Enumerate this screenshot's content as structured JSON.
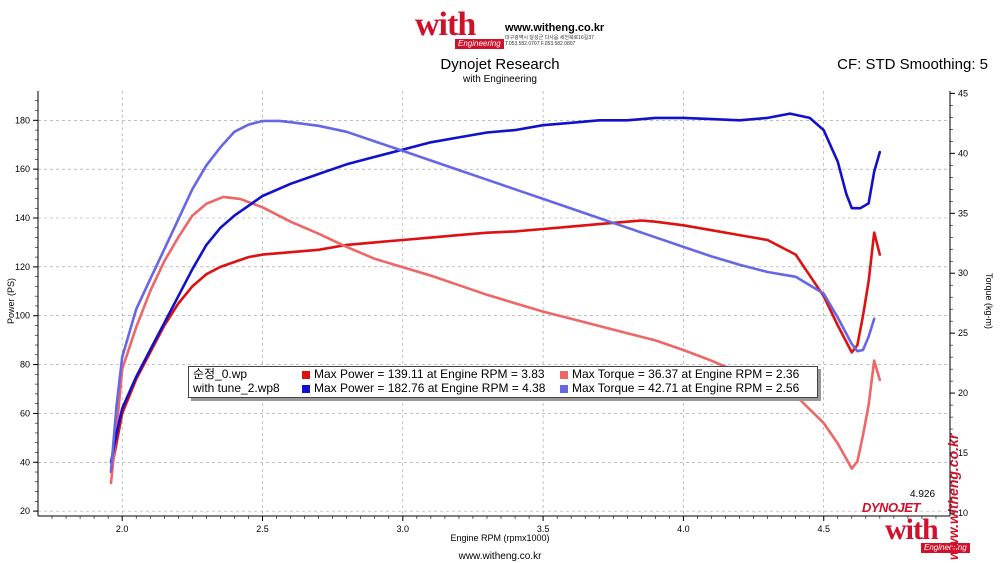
{
  "header": {
    "logo_word": "with",
    "logo_sub": "Engineering",
    "website": "www.witheng.co.kr",
    "contact_line": "대구광역시 달성군 다사읍 세천북로16길37  T.053.582.0707 F.053.582.0807"
  },
  "settings_text": "CF: STD Smoothing: 5",
  "footer_url": "www.witheng.co.kr",
  "side_url": "www.witheng.co.kr",
  "dyno_logo": "DYNOJET",
  "cursor_value": "4.926",
  "colors": {
    "run1_power": "#dd1111",
    "run1_torque": "#ee6666",
    "run2_power": "#1111cc",
    "run2_torque": "#6666e6",
    "grid": "#999999",
    "brand": "#d0112b"
  },
  "chart_data": {
    "type": "line",
    "title": "Dynojet Research",
    "subtitle": "with Engineering",
    "xlabel": "Engine RPM (rpmx1000)",
    "ylabel_left": "Power (PS)",
    "ylabel_right": "Torque (kg-m)",
    "xlim": [
      1.7,
      4.95
    ],
    "ylim_left": [
      18,
      192
    ],
    "ylim_right": [
      9.75,
      45.2
    ],
    "x_ticks": [
      "2.0",
      "2.5",
      "3.0",
      "3.5",
      "4.0",
      "4.5"
    ],
    "y_left_ticks": [
      "20",
      "40",
      "60",
      "80",
      "100",
      "120",
      "140",
      "160",
      "180"
    ],
    "y_right_ticks": [
      "10",
      "15",
      "20",
      "25",
      "30",
      "35",
      "40",
      "45"
    ],
    "grid": true,
    "legend_position": "center-bottom",
    "legend": [
      {
        "file": "순정_0.wp",
        "entries": [
          "Max Power = 139.11 at Engine RPM = 3.83",
          "Max Torque = 36.37 at Engine RPM = 2.36"
        ]
      },
      {
        "file": "with tune_2.wp8",
        "entries": [
          "Max Power = 182.76 at Engine RPM = 4.38",
          "Max Torque = 42.71 at Engine RPM = 2.56"
        ]
      }
    ],
    "series": [
      {
        "axis": "left",
        "color": "#dd1111",
        "x": [
          1.96,
          1.98,
          2.0,
          2.05,
          2.1,
          2.15,
          2.2,
          2.25,
          2.3,
          2.35,
          2.4,
          2.45,
          2.5,
          2.6,
          2.7,
          2.8,
          2.9,
          3.0,
          3.1,
          3.2,
          3.3,
          3.4,
          3.5,
          3.6,
          3.7,
          3.8,
          3.85,
          3.9,
          4.0,
          4.1,
          4.2,
          4.3,
          4.4,
          4.5,
          4.55,
          4.6,
          4.62,
          4.64,
          4.66,
          4.68,
          4.7
        ],
        "y": [
          36,
          48,
          60,
          74,
          85,
          96,
          105,
          112,
          117,
          120,
          122,
          124,
          125,
          126,
          127,
          129,
          130,
          131,
          132,
          133,
          134,
          134.5,
          135.5,
          136.5,
          137.5,
          138.5,
          139,
          138.5,
          137,
          135,
          133,
          131,
          125,
          108,
          96,
          85,
          88,
          100,
          114,
          134,
          125
        ]
      },
      {
        "axis": "right",
        "color": "#ee6666",
        "x": [
          1.96,
          1.98,
          2.0,
          2.05,
          2.1,
          2.15,
          2.2,
          2.25,
          2.3,
          2.36,
          2.42,
          2.5,
          2.6,
          2.7,
          2.8,
          2.9,
          3.0,
          3.1,
          3.2,
          3.3,
          3.4,
          3.5,
          3.6,
          3.7,
          3.8,
          3.9,
          4.0,
          4.1,
          4.2,
          4.3,
          4.4,
          4.5,
          4.55,
          4.6,
          4.62,
          4.64,
          4.66,
          4.68,
          4.7
        ],
        "y": [
          12.5,
          17,
          22,
          25.5,
          28.5,
          31,
          33,
          34.8,
          35.8,
          36.37,
          36.2,
          35.5,
          34.3,
          33.3,
          32.2,
          31.2,
          30.5,
          29.8,
          29,
          28.2,
          27.5,
          26.8,
          26.2,
          25.6,
          25,
          24.4,
          23.6,
          22.7,
          21.7,
          20.9,
          19.8,
          17.5,
          15.8,
          13.7,
          14.3,
          16.5,
          19,
          22.7,
          21.1
        ]
      },
      {
        "axis": "left",
        "color": "#1111cc",
        "x": [
          1.96,
          1.98,
          2.0,
          2.05,
          2.1,
          2.15,
          2.2,
          2.25,
          2.3,
          2.35,
          2.4,
          2.45,
          2.5,
          2.6,
          2.7,
          2.8,
          2.9,
          3.0,
          3.1,
          3.2,
          3.3,
          3.4,
          3.5,
          3.6,
          3.7,
          3.8,
          3.9,
          4.0,
          4.1,
          4.2,
          4.3,
          4.38,
          4.45,
          4.5,
          4.55,
          4.58,
          4.6,
          4.63,
          4.66,
          4.68,
          4.7
        ],
        "y": [
          40,
          52,
          62,
          75,
          86,
          97,
          108,
          119,
          129,
          136,
          141,
          145,
          149,
          154,
          158,
          162,
          165,
          168,
          171,
          173,
          175,
          176,
          178,
          179,
          180,
          180,
          181,
          181,
          180.5,
          180,
          181,
          182.76,
          181,
          176,
          163,
          150,
          144,
          144,
          146,
          159,
          167
        ]
      },
      {
        "axis": "right",
        "color": "#6666e6",
        "x": [
          1.96,
          1.98,
          2.0,
          2.05,
          2.1,
          2.15,
          2.2,
          2.25,
          2.3,
          2.35,
          2.4,
          2.45,
          2.5,
          2.56,
          2.6,
          2.7,
          2.8,
          2.9,
          3.0,
          3.1,
          3.2,
          3.3,
          3.4,
          3.5,
          3.6,
          3.7,
          3.8,
          3.9,
          4.0,
          4.1,
          4.2,
          4.3,
          4.4,
          4.5,
          4.55,
          4.6,
          4.62,
          4.64,
          4.66,
          4.68
        ],
        "y": [
          13.5,
          19,
          23,
          27,
          29.5,
          32,
          34.5,
          37,
          39,
          40.5,
          41.8,
          42.4,
          42.7,
          42.71,
          42.6,
          42.3,
          41.8,
          41,
          40.2,
          39.4,
          38.6,
          37.8,
          37,
          36.2,
          35.4,
          34.6,
          33.8,
          33,
          32.2,
          31.4,
          30.7,
          30.1,
          29.7,
          28.3,
          26.3,
          24.1,
          23.5,
          23.6,
          24.7,
          26.2
        ]
      }
    ]
  }
}
